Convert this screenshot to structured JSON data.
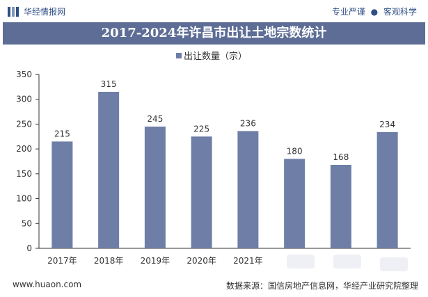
{
  "header": {
    "brand": "华经情报网",
    "slogan_left": "专业严谨",
    "slogan_sep": "●",
    "slogan_right": "客观科学"
  },
  "title": "2017-2024年许昌市出让土地宗数统计",
  "footer": {
    "site": "www.huaon.com",
    "source": "数据来源：国信房地产信息网，华经产业研究院整理"
  },
  "colors": {
    "bar": "#6e7ea6",
    "title_bg": "#5d6d96",
    "brand": "#2f4e86"
  },
  "chart_data": {
    "type": "bar",
    "categories": [
      "2017年",
      "2018年",
      "2019年",
      "2020年",
      "2021年",
      "",
      "",
      ""
    ],
    "series": [
      {
        "name": "出让数量（宗）",
        "values": [
          215,
          315,
          245,
          225,
          236,
          180,
          168,
          234
        ]
      }
    ],
    "yticks": [
      0,
      50,
      100,
      150,
      200,
      250,
      300,
      350
    ],
    "ylim": [
      0,
      350
    ],
    "legend_position": "top-center",
    "grid": false
  }
}
